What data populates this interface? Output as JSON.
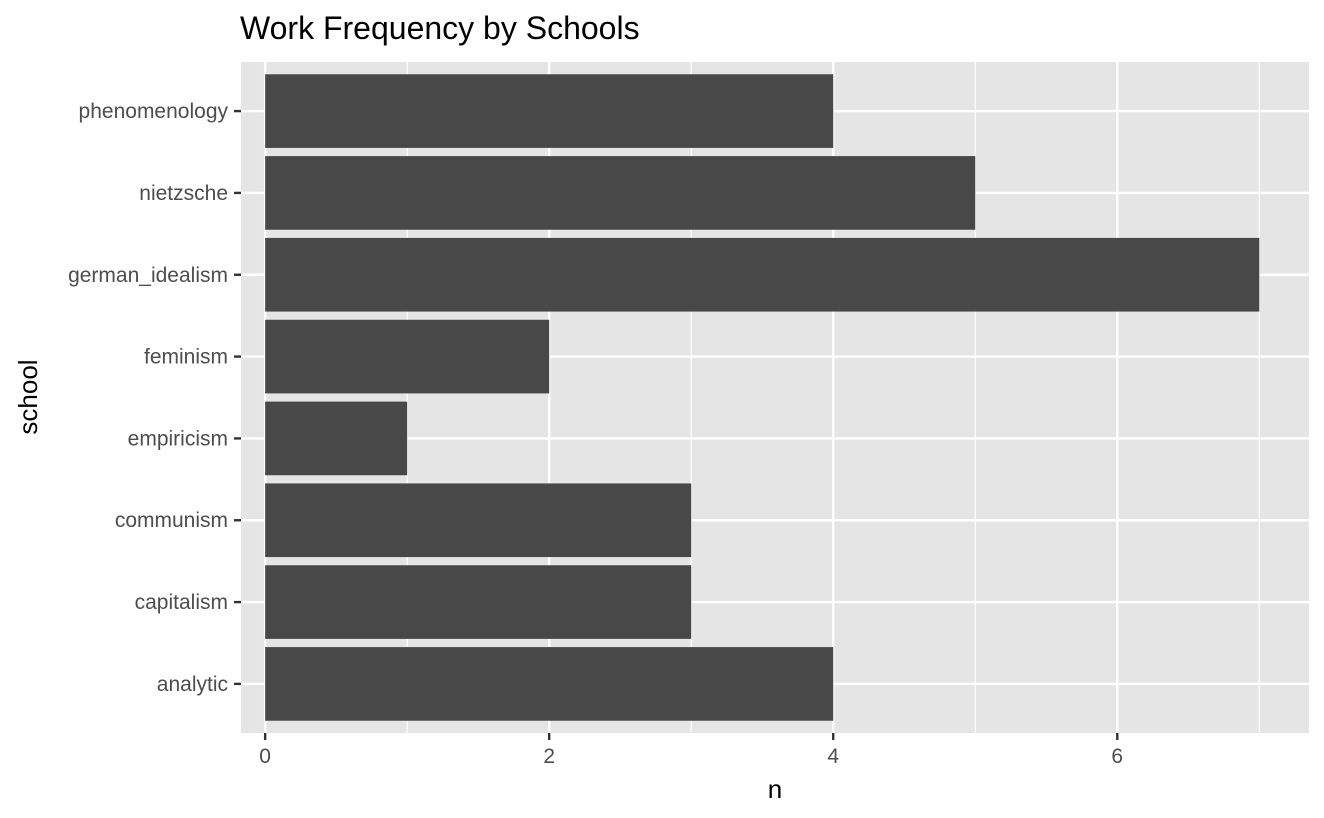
{
  "chart_data": {
    "type": "bar",
    "orientation": "horizontal",
    "title": "Work Frequency by Schools",
    "xlabel": "n",
    "ylabel": "school",
    "categories": [
      "analytic",
      "capitalism",
      "communism",
      "empiricism",
      "feminism",
      "german_idealism",
      "nietzsche",
      "phenomenology"
    ],
    "values": [
      4,
      3,
      3,
      1,
      2,
      7,
      5,
      4
    ],
    "xlim": [
      -0.17,
      7.35
    ],
    "x_ticks": [
      0,
      2,
      4,
      6
    ],
    "x_tick_labels": [
      "0",
      "2",
      "4",
      "6"
    ],
    "grid": true,
    "legend": "none",
    "colors": {
      "bar": "#484848",
      "panel": "#e5e5e5",
      "grid": "#ffffff",
      "tick_label": "#4d4d4d",
      "text": "#000000",
      "tick_mark": "#333333"
    }
  }
}
